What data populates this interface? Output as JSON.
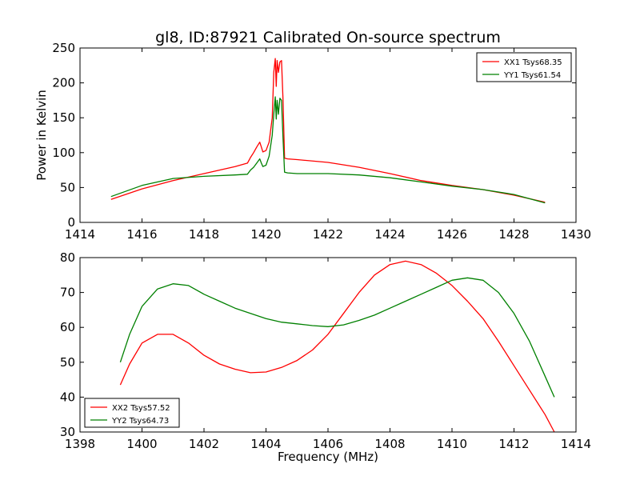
{
  "figure": {
    "title": "gl8, ID:87921 Calibrated On-source spectrum",
    "xlabel": "Frequency (MHz)",
    "ylabel": "Power in Kelvin"
  },
  "colors": {
    "xx": "#ff0000",
    "yy": "#008000"
  },
  "chart_data": [
    {
      "type": "line",
      "xlim": [
        1414,
        1430
      ],
      "ylim": [
        0,
        250
      ],
      "xticks": [
        1414,
        1416,
        1418,
        1420,
        1422,
        1424,
        1426,
        1428,
        1430
      ],
      "yticks": [
        0,
        50,
        100,
        150,
        200,
        250
      ],
      "grid": false,
      "legend": "top-right",
      "series": [
        {
          "name": "XX1 Tsys68.35",
          "color": "#ff0000",
          "x": [
            1415.0,
            1416.0,
            1417.0,
            1418.0,
            1419.0,
            1419.4,
            1419.5,
            1419.6,
            1419.7,
            1419.8,
            1419.85,
            1419.9,
            1420.0,
            1420.1,
            1420.2,
            1420.25,
            1420.3,
            1420.33,
            1420.36,
            1420.4,
            1420.45,
            1420.5,
            1420.55,
            1420.6,
            1420.7,
            1421.0,
            1422.0,
            1423.0,
            1424.0,
            1425.0,
            1426.0,
            1427.0,
            1428.0,
            1429.0
          ],
          "y": [
            33,
            48,
            60,
            70,
            80,
            85,
            93,
            100,
            108,
            115,
            108,
            101,
            103,
            115,
            150,
            215,
            235,
            195,
            232,
            215,
            230,
            232,
            175,
            92,
            91,
            90,
            86,
            79,
            70,
            60,
            53,
            47,
            39,
            29
          ]
        },
        {
          "name": "YY1 Tsys61.54",
          "color": "#008000",
          "x": [
            1415.0,
            1416.0,
            1417.0,
            1418.0,
            1419.0,
            1419.4,
            1419.5,
            1419.6,
            1419.7,
            1419.8,
            1419.85,
            1419.9,
            1420.0,
            1420.1,
            1420.2,
            1420.25,
            1420.3,
            1420.33,
            1420.36,
            1420.4,
            1420.45,
            1420.5,
            1420.55,
            1420.6,
            1420.7,
            1421.0,
            1422.0,
            1423.0,
            1424.0,
            1425.0,
            1426.0,
            1427.0,
            1428.0,
            1429.0
          ],
          "y": [
            37,
            53,
            63,
            66,
            68,
            69,
            75,
            79,
            85,
            91,
            85,
            80,
            82,
            95,
            125,
            155,
            180,
            148,
            175,
            155,
            178,
            175,
            120,
            72,
            71,
            70,
            70,
            68,
            64,
            58,
            52,
            47,
            40,
            28
          ]
        }
      ]
    },
    {
      "type": "line",
      "xlim": [
        1398,
        1414
      ],
      "ylim": [
        30,
        80
      ],
      "xticks": [
        1398,
        1400,
        1402,
        1404,
        1406,
        1408,
        1410,
        1412,
        1414
      ],
      "yticks": [
        30,
        40,
        50,
        60,
        70,
        80
      ],
      "grid": false,
      "legend": "bottom-left",
      "series": [
        {
          "name": "XX2 Tsys57.52",
          "color": "#ff0000",
          "x": [
            1399.3,
            1399.6,
            1400.0,
            1400.5,
            1401.0,
            1401.5,
            1402.0,
            1402.5,
            1403.0,
            1403.5,
            1404.0,
            1404.5,
            1405.0,
            1405.5,
            1406.0,
            1406.5,
            1407.0,
            1407.5,
            1408.0,
            1408.5,
            1409.0,
            1409.5,
            1410.0,
            1410.5,
            1411.0,
            1411.5,
            1412.0,
            1412.5,
            1413.0,
            1413.3
          ],
          "y": [
            43.5,
            49.5,
            55.5,
            58,
            58,
            55.5,
            52,
            49.5,
            48,
            47,
            47.2,
            48.5,
            50.5,
            53.5,
            58,
            64,
            70,
            75,
            78,
            79,
            78,
            75.5,
            72,
            67.5,
            62.5,
            56,
            49,
            42,
            35,
            30
          ]
        },
        {
          "name": "YY2 Tsys64.73",
          "color": "#008000",
          "x": [
            1399.3,
            1399.6,
            1400.0,
            1400.5,
            1401.0,
            1401.5,
            1402.0,
            1402.5,
            1403.0,
            1403.5,
            1404.0,
            1404.5,
            1405.0,
            1405.5,
            1406.0,
            1406.5,
            1407.0,
            1407.5,
            1408.0,
            1408.5,
            1409.0,
            1409.5,
            1410.0,
            1410.5,
            1411.0,
            1411.5,
            1412.0,
            1412.5,
            1413.0,
            1413.3
          ],
          "y": [
            50,
            58,
            66,
            71,
            72.5,
            72,
            69.5,
            67.5,
            65.5,
            64,
            62.5,
            61.5,
            61,
            60.5,
            60.2,
            60.7,
            62,
            63.5,
            65.5,
            67.5,
            69.5,
            71.5,
            73.5,
            74.2,
            73.5,
            70,
            64,
            56,
            46,
            40
          ]
        }
      ]
    }
  ]
}
